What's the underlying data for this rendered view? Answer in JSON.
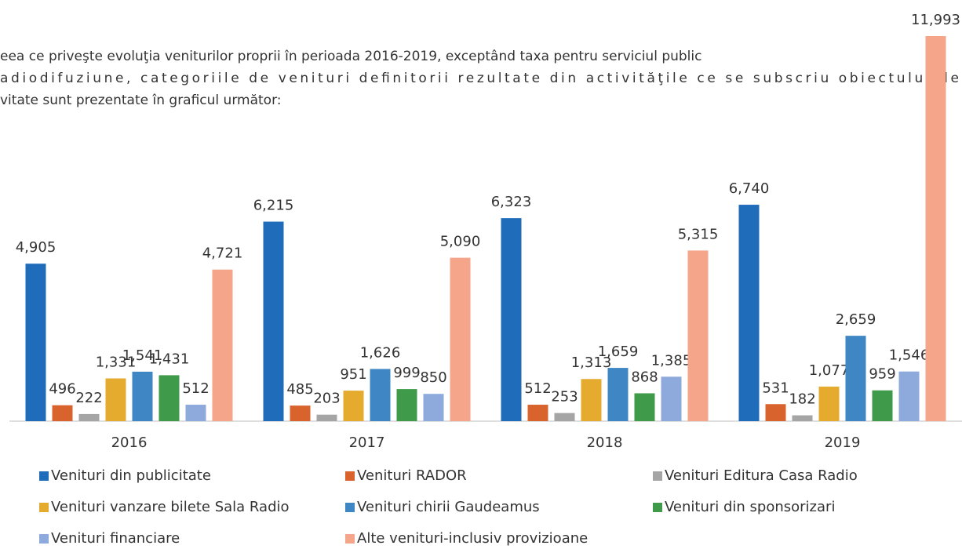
{
  "intro": [
    "eea ce priveşte evoluţia veniturilor proprii în perioada 2016-2019, exceptând taxa pentru serviciul public",
    "adiodifuziune, categoriile de venituri definitorii rezultate din activităţile ce se subscriu obiectului de",
    "vitate sunt prezentate în graficul următor:"
  ],
  "chart_data": {
    "type": "bar",
    "categories": [
      "2016",
      "2017",
      "2018",
      "2019"
    ],
    "series": [
      {
        "name": "Venituri din publicitate",
        "color": "#1f6cbb",
        "values": [
          4905,
          6215,
          6323,
          6740
        ],
        "value_labels": [
          "4,905",
          "6,215",
          "6,323",
          "6,740"
        ]
      },
      {
        "name": "Venituri RADOR",
        "color": "#d8632c",
        "values": [
          496,
          485,
          512,
          531
        ],
        "value_labels": [
          "496",
          "485",
          "512",
          "531"
        ]
      },
      {
        "name": "Venituri Editura Casa Radio",
        "color": "#a5a5a5",
        "values": [
          222,
          203,
          253,
          182
        ],
        "value_labels": [
          "222",
          "203",
          "253",
          "182"
        ]
      },
      {
        "name": "Venituri vanzare bilete Sala Radio",
        "color": "#e5ab2f",
        "values": [
          1331,
          951,
          1313,
          1077
        ],
        "value_labels": [
          "1,331",
          "951",
          "1,313",
          "1,077"
        ]
      },
      {
        "name": "Venituri chirii Gaudeamus",
        "color": "#3e86c4",
        "values": [
          1541,
          1626,
          1659,
          2659
        ],
        "value_labels": [
          "1,541",
          "1,626",
          "1,659",
          "2,659"
        ]
      },
      {
        "name": "Venituri din sponsorizari",
        "color": "#3f9a49",
        "values": [
          1431,
          999,
          868,
          959
        ],
        "value_labels": [
          "1,431",
          "999",
          "868",
          "959"
        ]
      },
      {
        "name": "Venituri financiare",
        "color": "#8eaadc",
        "values": [
          512,
          850,
          1385,
          1546
        ],
        "value_labels": [
          "512",
          "850",
          "1,385",
          "1,546"
        ]
      },
      {
        "name": "Alte venituri-inclusiv provizioane",
        "color": "#f5a68a",
        "values": [
          4721,
          5090,
          5315,
          11993
        ],
        "value_labels": [
          "4,721",
          "5,090",
          "5,315",
          "11,993"
        ]
      }
    ]
  }
}
